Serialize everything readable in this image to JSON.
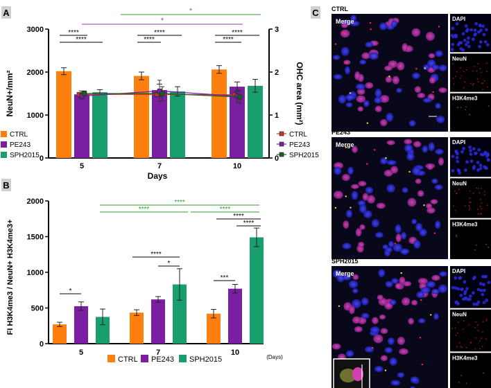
{
  "colors": {
    "ctrl": "#ff7f0e",
    "pe243": "#7a1fa2",
    "sph2015": "#1a9e6e",
    "sig_green": "#2e9e2e",
    "sig_purple": "#9b35b0",
    "line_ctrl": "#c0392b",
    "line_pe": "#7a1fa2",
    "line_sph": "#1b5e20"
  },
  "panels": {
    "a": "A",
    "b": "B",
    "c": "C"
  },
  "chart_data": [
    {
      "type": "bar",
      "panel": "A",
      "categories": [
        "5",
        "7",
        "10"
      ],
      "xlabel": "Days",
      "ylabel": "NeuN+/mm²",
      "ylabel_right": "OHC area (mm²)",
      "ylim": [
        0,
        3000
      ],
      "yticks": [
        "0",
        "1000",
        "2000",
        "3000"
      ],
      "ylim_right": [
        0,
        3
      ],
      "yticks_right": [
        "0",
        "1",
        "2",
        "3"
      ],
      "series": [
        {
          "name": "CTRL",
          "values": [
            2020,
            1910,
            2060
          ],
          "err": [
            80,
            90,
            90
          ]
        },
        {
          "name": "PE243",
          "values": [
            1480,
            1580,
            1660
          ],
          "err": [
            80,
            140,
            110
          ]
        },
        {
          "name": "SPH2015",
          "values": [
            1530,
            1550,
            1680
          ],
          "err": [
            60,
            110,
            150
          ]
        }
      ],
      "lines": [
        {
          "name": "CTRL",
          "values": [
            1.48,
            1.48,
            1.47
          ],
          "err": [
            0.03,
            0.05,
            0.04
          ]
        },
        {
          "name": "PE243",
          "values": [
            1.44,
            1.56,
            1.44
          ],
          "err": [
            0.07,
            0.25,
            0.14
          ]
        },
        {
          "name": "SPH2015",
          "values": [
            1.5,
            1.5,
            1.42
          ],
          "err": [
            0.06,
            0.16,
            0.15
          ]
        }
      ],
      "legend_left": [
        "CTRL",
        "PE243",
        "SPH2015"
      ],
      "legend_right": [
        "CTRL",
        "PE243",
        "SPH2015"
      ],
      "significance": [
        {
          "label": "*",
          "color": "green",
          "from": "5",
          "to": "10"
        },
        {
          "label": "*",
          "color": "purple",
          "from": "5",
          "to": "10"
        },
        {
          "label": "****",
          "pair": "5 CTRL-PE243"
        },
        {
          "label": "****",
          "pair": "5 CTRL-SPH2015"
        },
        {
          "label": "****",
          "pair": "7 CTRL-SPH2015"
        },
        {
          "label": "****",
          "pair": "7 CTRL-PE243"
        },
        {
          "label": "****",
          "pair": "10 CTRL-SPH2015"
        },
        {
          "label": "****",
          "pair": "10 CTRL-PE243"
        }
      ]
    },
    {
      "type": "bar",
      "panel": "B",
      "categories": [
        "5",
        "7",
        "10"
      ],
      "xlabel_suffix": "(Days)",
      "ylabel": "FI H3K4me3 / NeuN+ H3K4me3+",
      "ylim": [
        0,
        2000
      ],
      "yticks": [
        "0",
        "500",
        "1000",
        "1500",
        "2000"
      ],
      "series": [
        {
          "name": "CTRL",
          "values": [
            270,
            435,
            420
          ],
          "err": [
            30,
            40,
            60
          ]
        },
        {
          "name": "PE243",
          "values": [
            525,
            620,
            770
          ],
          "err": [
            60,
            40,
            60
          ]
        },
        {
          "name": "SPH2015",
          "values": [
            375,
            830,
            1490
          ],
          "err": [
            110,
            220,
            130
          ]
        }
      ],
      "legend": [
        "CTRL",
        "PE243",
        "SPH2015"
      ],
      "significance": [
        {
          "label": "****",
          "color": "green",
          "pair": "SPH2015 5-10"
        },
        {
          "label": "****",
          "color": "green",
          "pair": "SPH2015 5-7"
        },
        {
          "label": "****",
          "color": "green",
          "pair": "SPH2015 7-10"
        },
        {
          "label": "*",
          "pair": "5 CTRL-PE243"
        },
        {
          "label": "****",
          "pair": "7 CTRL-SPH2015"
        },
        {
          "label": "*",
          "pair": "7 PE243-SPH2015"
        },
        {
          "label": "***",
          "pair": "10 CTRL-PE243"
        },
        {
          "label": "****",
          "pair": "10 CTRL-SPH2015"
        },
        {
          "label": "****",
          "pair": "10 PE243-SPH2015"
        }
      ]
    }
  ],
  "micrographs": {
    "groups": [
      {
        "title": "CTRL",
        "main": "Merge",
        "channels": [
          "DAPI",
          "NeuN",
          "H3K4me3"
        ]
      },
      {
        "title": "PE243",
        "main": "Merge",
        "channels": [
          "DAPI",
          "NeuN",
          "H3K4me3"
        ]
      },
      {
        "title": "SPH2015",
        "main": "Merge",
        "channels": [
          "DAPI",
          "NeuN",
          "H3K4me3"
        ]
      }
    ]
  }
}
